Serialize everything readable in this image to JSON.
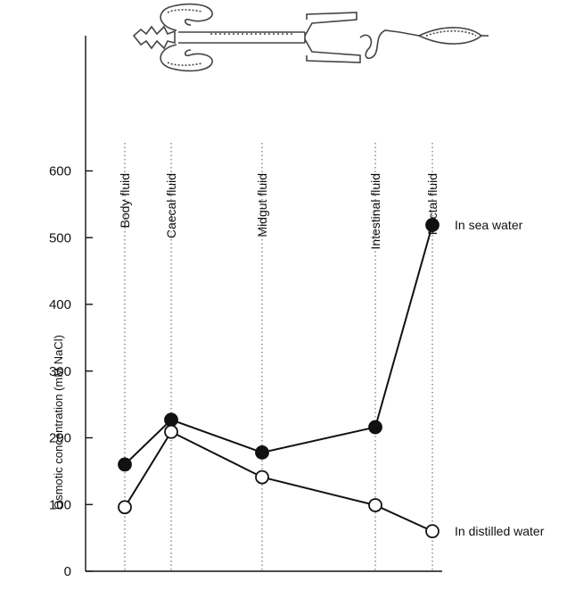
{
  "chart_data": {
    "type": "line",
    "ylabel": "Osmotic concentration (mM NaCl)",
    "yticks": [
      0,
      100,
      200,
      300,
      400,
      500,
      600
    ],
    "ylim": [
      0,
      780
    ],
    "categories": [
      "Body fluid",
      "Caecal fluid",
      "Midgut fluid",
      "Intestinal fluid",
      "Rectal fluid"
    ],
    "series": [
      {
        "name": "In sea water",
        "marker": "filled",
        "values": [
          160,
          227,
          178,
          216,
          519
        ]
      },
      {
        "name": "In distilled water",
        "marker": "open",
        "values": [
          96,
          209,
          141,
          99,
          60
        ]
      }
    ],
    "grid": false,
    "illustration": "insect-gut-diagram"
  }
}
